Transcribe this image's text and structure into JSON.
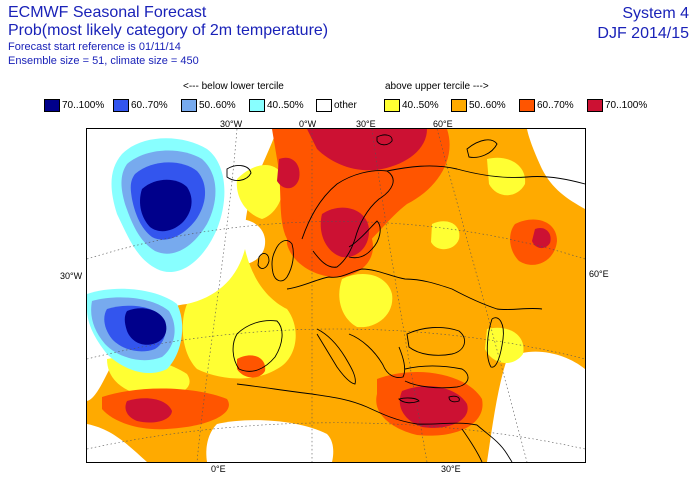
{
  "header": {
    "title": "ECMWF Seasonal Forecast",
    "subtitle": "Prob(most likely category of 2m temperature)",
    "start_reference": "Forecast start reference is 01/11/14",
    "ensemble": "Ensemble size = 51, climate size = 450",
    "system": "System 4",
    "season": "DJF 2014/15"
  },
  "legend": {
    "below_label": "<--- below lower tercile",
    "above_label": "above upper tercile --->",
    "items": [
      {
        "label": "70..100%",
        "color": "#00008b"
      },
      {
        "label": "60..70%",
        "color": "#3355ee"
      },
      {
        "label": "50..60%",
        "color": "#77aaee"
      },
      {
        "label": "40..50%",
        "color": "#88ffff"
      },
      {
        "label": "other",
        "color": "#ffffff"
      },
      {
        "label": "40..50%",
        "color": "#ffff33"
      },
      {
        "label": "50..60%",
        "color": "#ffaa00"
      },
      {
        "label": "60..70%",
        "color": "#ff5500"
      },
      {
        "label": "70..100%",
        "color": "#cc1133"
      }
    ]
  },
  "grid_labels": {
    "top": [
      "30°W",
      "0°W",
      "30°E",
      "60°E"
    ],
    "left": "30°W",
    "right": "60°E",
    "bottom": [
      "0°E",
      "30°E"
    ]
  }
}
